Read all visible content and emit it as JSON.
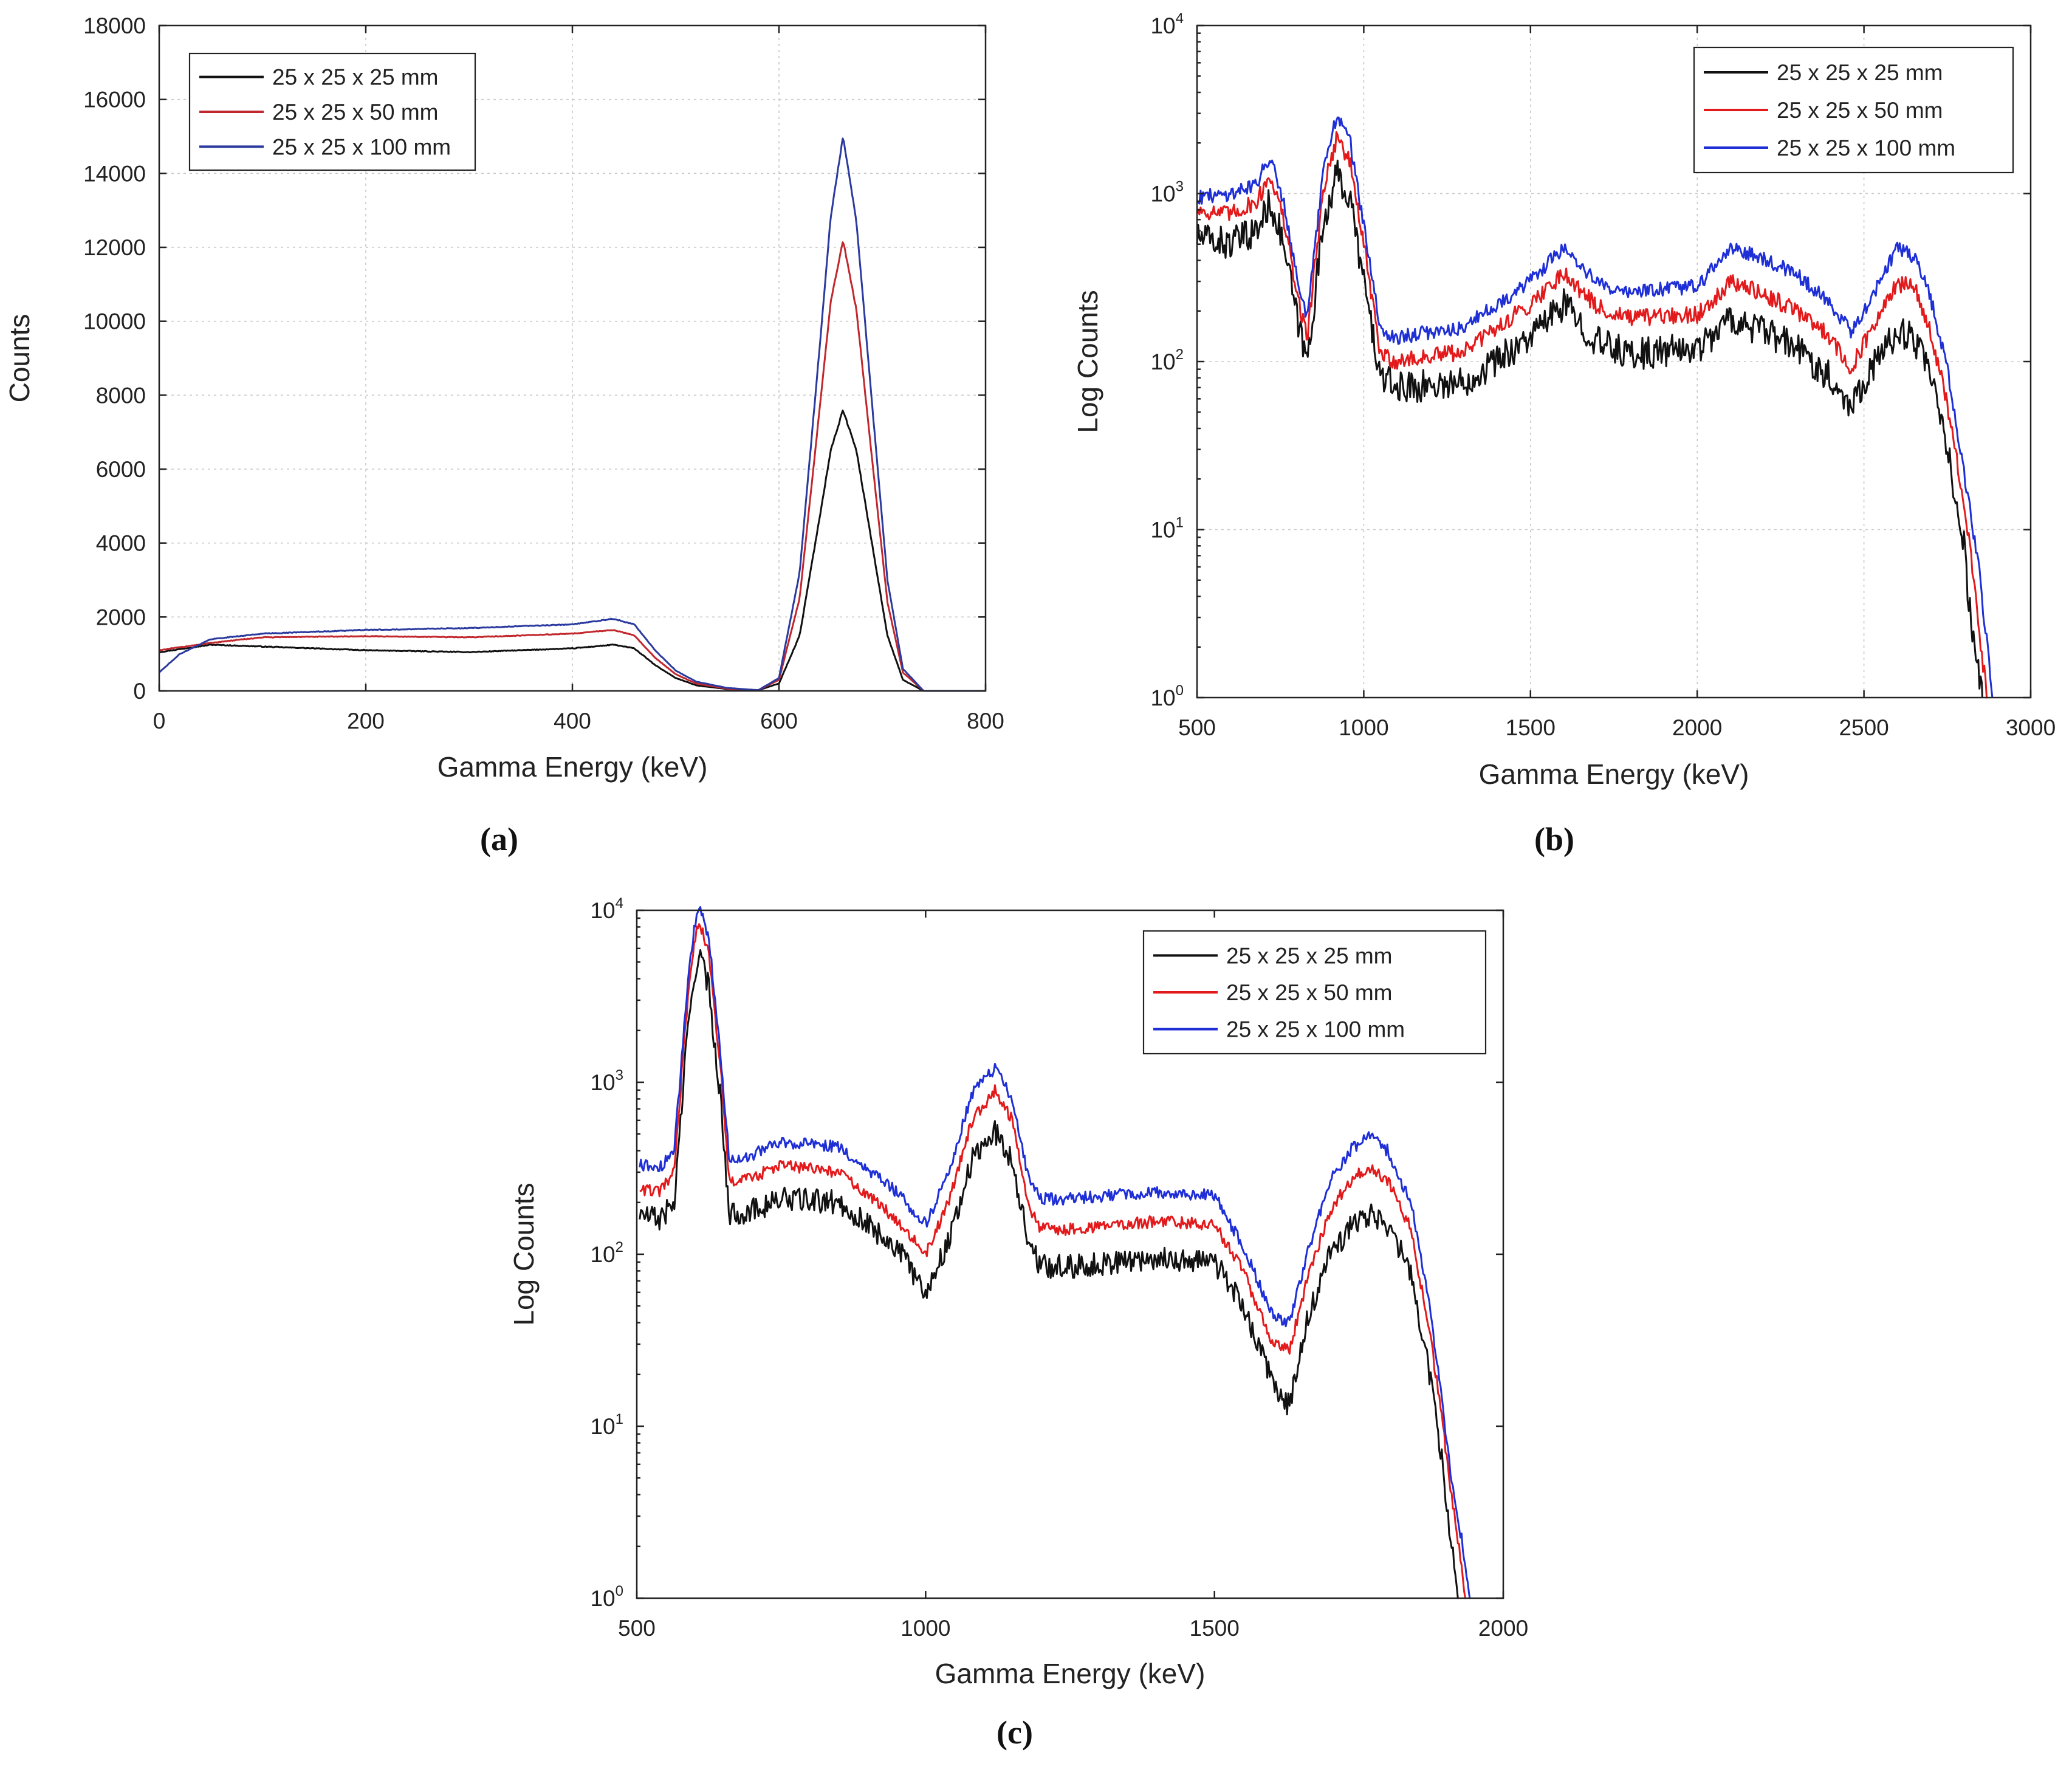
{
  "chart_data": [
    {
      "id": "a",
      "panel_label": "(a)",
      "type": "line",
      "xlabel": "Gamma Energy (keV)",
      "ylabel": "Counts",
      "xlim": [
        0,
        800
      ],
      "ylim": [
        0,
        18000
      ],
      "yscale": "linear",
      "grid": true,
      "legend_position": "top-left",
      "x_ticks": [
        {
          "value": 0,
          "label": "0"
        },
        {
          "value": 200,
          "label": "200"
        },
        {
          "value": 400,
          "label": "400"
        },
        {
          "value": 600,
          "label": "600"
        },
        {
          "value": 800,
          "label": "800"
        }
      ],
      "y_ticks": [
        {
          "value": 0,
          "label": "0"
        },
        {
          "value": 2000,
          "label": "2000"
        },
        {
          "value": 4000,
          "label": "4000"
        },
        {
          "value": 6000,
          "label": "6000"
        },
        {
          "value": 8000,
          "label": "8000"
        },
        {
          "value": 10000,
          "label": "10000"
        },
        {
          "value": 12000,
          "label": "12000"
        },
        {
          "value": 14000,
          "label": "14000"
        },
        {
          "value": 16000,
          "label": "16000"
        },
        {
          "value": 18000,
          "label": "18000"
        }
      ],
      "series": [
        {
          "name": "25 x 25 x 25 mm",
          "color": "#111111",
          "x": [
            0,
            50,
            100,
            200,
            300,
            400,
            440,
            460,
            480,
            500,
            520,
            550,
            580,
            600,
            620,
            640,
            650,
            662,
            675,
            690,
            705,
            720,
            740,
            800
          ],
          "y": [
            1050,
            1250,
            1200,
            1100,
            1050,
            1150,
            1250,
            1150,
            700,
            350,
            150,
            50,
            20,
            200,
            1500,
            4800,
            6500,
            7600,
            6500,
            4000,
            1500,
            300,
            0,
            0
          ],
          "noise": 0.05
        },
        {
          "name": "25 x 25 x 50 mm",
          "color": "#c1272d",
          "x": [
            0,
            50,
            100,
            200,
            300,
            400,
            440,
            460,
            480,
            500,
            520,
            550,
            580,
            600,
            620,
            640,
            650,
            662,
            675,
            690,
            705,
            720,
            740,
            800
          ],
          "y": [
            1100,
            1300,
            1450,
            1480,
            1450,
            1550,
            1650,
            1500,
            900,
            450,
            200,
            60,
            20,
            300,
            2500,
            7800,
            10500,
            12200,
            10300,
            6300,
            2400,
            500,
            0,
            0
          ],
          "noise": 0.04
        },
        {
          "name": "25 x 25 x 100 mm",
          "color": "#2b3a9e",
          "x": [
            0,
            20,
            50,
            100,
            200,
            300,
            400,
            440,
            460,
            480,
            500,
            520,
            550,
            580,
            600,
            620,
            640,
            650,
            662,
            675,
            690,
            705,
            720,
            740,
            800
          ],
          "y": [
            500,
            1000,
            1400,
            1550,
            1650,
            1700,
            1800,
            1950,
            1800,
            1100,
            550,
            250,
            80,
            20,
            350,
            3200,
            9500,
            12800,
            15000,
            12700,
            7800,
            3000,
            600,
            0,
            0
          ],
          "noise": 0.04
        }
      ]
    },
    {
      "id": "b",
      "panel_label": "(b)",
      "type": "line",
      "xlabel": "Gamma Energy (keV)",
      "ylabel": "Log Counts",
      "xlim": [
        500,
        3000
      ],
      "ylim": [
        1,
        10000
      ],
      "yscale": "log",
      "grid": true,
      "legend_position": "top-right",
      "x_ticks": [
        {
          "value": 500,
          "label": "500"
        },
        {
          "value": 1000,
          "label": "1000"
        },
        {
          "value": 1500,
          "label": "1500"
        },
        {
          "value": 2000,
          "label": "2000"
        },
        {
          "value": 2500,
          "label": "2500"
        },
        {
          "value": 3000,
          "label": "3000"
        }
      ],
      "y_ticks": [
        {
          "value": 1,
          "base": "10",
          "exp": "0"
        },
        {
          "value": 10,
          "base": "10",
          "exp": "1"
        },
        {
          "value": 100,
          "base": "10",
          "exp": "2"
        },
        {
          "value": 1000,
          "base": "10",
          "exp": "3"
        },
        {
          "value": 10000,
          "base": "10",
          "exp": "4"
        }
      ],
      "series": [
        {
          "name": "25 x 25 x 25 mm",
          "color": "#111111",
          "x": [
            500,
            600,
            680,
            720,
            760,
            800,
            830,
            880,
            920,
            960,
            1000,
            1050,
            1100,
            1300,
            1500,
            1600,
            1700,
            1800,
            2000,
            2100,
            2200,
            2300,
            2400,
            2460,
            2520,
            2600,
            2650,
            2700,
            2750,
            2800,
            2820,
            2840,
            2855
          ],
          "y": [
            550,
            500,
            600,
            900,
            500,
            180,
            100,
            700,
            1300,
            900,
            300,
            80,
            70,
            75,
            140,
            220,
            130,
            110,
            120,
            180,
            150,
            120,
            80,
            55,
            90,
            150,
            140,
            80,
            30,
            8,
            3,
            1.5,
            1
          ],
          "noise": 0.22
        },
        {
          "name": "25 x 25 x 50 mm",
          "color": "#e31a1c",
          "x": [
            500,
            600,
            680,
            720,
            760,
            800,
            830,
            880,
            920,
            960,
            1000,
            1050,
            1100,
            1300,
            1500,
            1600,
            1700,
            1800,
            2000,
            2100,
            2200,
            2300,
            2400,
            2460,
            2520,
            2600,
            2650,
            2700,
            2750,
            2800,
            2830,
            2850,
            2870
          ],
          "y": [
            800,
            750,
            900,
            1300,
            700,
            250,
            140,
            1100,
            2200,
            1500,
            500,
            110,
            100,
            115,
            220,
            340,
            210,
            180,
            190,
            300,
            250,
            200,
            140,
            90,
            150,
            290,
            280,
            150,
            55,
            14,
            5,
            2,
            1
          ],
          "noise": 0.12
        },
        {
          "name": "25 x 25 x 100 mm",
          "color": "#1f2fd6",
          "x": [
            500,
            600,
            680,
            720,
            760,
            800,
            830,
            880,
            920,
            960,
            1000,
            1050,
            1100,
            1300,
            1500,
            1600,
            1700,
            1800,
            2000,
            2100,
            2200,
            2300,
            2400,
            2460,
            2520,
            2600,
            2650,
            2700,
            2750,
            2800,
            2840,
            2865,
            2885
          ],
          "y": [
            950,
            1000,
            1150,
            1700,
            900,
            320,
            180,
            1400,
            3000,
            2000,
            650,
            150,
            140,
            160,
            300,
            480,
            290,
            260,
            280,
            470,
            410,
            330,
            220,
            150,
            230,
            480,
            420,
            240,
            90,
            22,
            7,
            2.5,
            1
          ],
          "noise": 0.1
        }
      ]
    },
    {
      "id": "c",
      "panel_label": "(c)",
      "type": "line",
      "xlabel": "Gamma Energy (keV)",
      "ylabel": "Log Counts",
      "xlim": [
        500,
        2000
      ],
      "ylim": [
        1,
        10000
      ],
      "yscale": "log",
      "grid": false,
      "legend_position": "top-right",
      "x_ticks": [
        {
          "value": 500,
          "label": "500"
        },
        {
          "value": 1000,
          "label": "1000"
        },
        {
          "value": 1500,
          "label": "1500"
        },
        {
          "value": 2000,
          "label": "2000"
        }
      ],
      "y_ticks": [
        {
          "value": 1,
          "base": "10",
          "exp": "0"
        },
        {
          "value": 10,
          "base": "10",
          "exp": "1"
        },
        {
          "value": 100,
          "base": "10",
          "exp": "2"
        },
        {
          "value": 1000,
          "base": "10",
          "exp": "3"
        },
        {
          "value": 10000,
          "base": "10",
          "exp": "4"
        }
      ],
      "series": [
        {
          "name": "25 x 25 x 25 mm",
          "color": "#111111",
          "x": [
            505,
            540,
            565,
            585,
            600,
            610,
            625,
            645,
            660,
            700,
            750,
            850,
            950,
            1000,
            1040,
            1080,
            1120,
            1150,
            1180,
            1200,
            1250,
            1400,
            1500,
            1550,
            1600,
            1630,
            1660,
            1700,
            1740,
            1770,
            1800,
            1840,
            1870,
            1890,
            1905,
            1915,
            1922
          ],
          "y": [
            170,
            160,
            200,
            1500,
            4500,
            5300,
            3500,
            800,
            170,
            180,
            210,
            200,
            110,
            60,
            120,
            350,
            520,
            350,
            110,
            85,
            85,
            95,
            90,
            50,
            18,
            13,
            40,
            100,
            150,
            170,
            145,
            80,
            22,
            8,
            3,
            1.5,
            1
          ],
          "noise": 0.16
        },
        {
          "name": "25 x 25 x 50 mm",
          "color": "#e31a1c",
          "x": [
            505,
            540,
            565,
            585,
            600,
            610,
            625,
            645,
            660,
            700,
            750,
            850,
            950,
            1000,
            1040,
            1080,
            1120,
            1150,
            1180,
            1200,
            1250,
            1400,
            1500,
            1550,
            1600,
            1630,
            1660,
            1700,
            1740,
            1770,
            1800,
            1840,
            1870,
            1890,
            1910,
            1925,
            1935
          ],
          "y": [
            240,
            230,
            300,
            2300,
            7000,
            8300,
            5500,
            1200,
            260,
            280,
            330,
            300,
            160,
            100,
            200,
            600,
            900,
            600,
            180,
            140,
            140,
            155,
            150,
            80,
            30,
            28,
            70,
            180,
            280,
            320,
            270,
            140,
            40,
            14,
            4,
            1.8,
            1
          ],
          "noise": 0.08
        },
        {
          "name": "25 x 25 x 100 mm",
          "color": "#1f2fd6",
          "x": [
            505,
            540,
            565,
            585,
            600,
            610,
            625,
            645,
            660,
            700,
            750,
            850,
            950,
            1000,
            1040,
            1080,
            1120,
            1150,
            1180,
            1200,
            1250,
            1400,
            1500,
            1550,
            1600,
            1630,
            1660,
            1700,
            1740,
            1770,
            1800,
            1840,
            1870,
            1890,
            1910,
            1930,
            1942
          ],
          "y": [
            330,
            320,
            400,
            2800,
            8500,
            10000,
            6800,
            1500,
            350,
            380,
            450,
            420,
            230,
            150,
            300,
            850,
            1200,
            800,
            260,
            210,
            210,
            230,
            220,
            110,
            45,
            40,
            100,
            270,
            420,
            480,
            400,
            200,
            55,
            18,
            5,
            2,
            1
          ],
          "noise": 0.08
        }
      ]
    }
  ]
}
